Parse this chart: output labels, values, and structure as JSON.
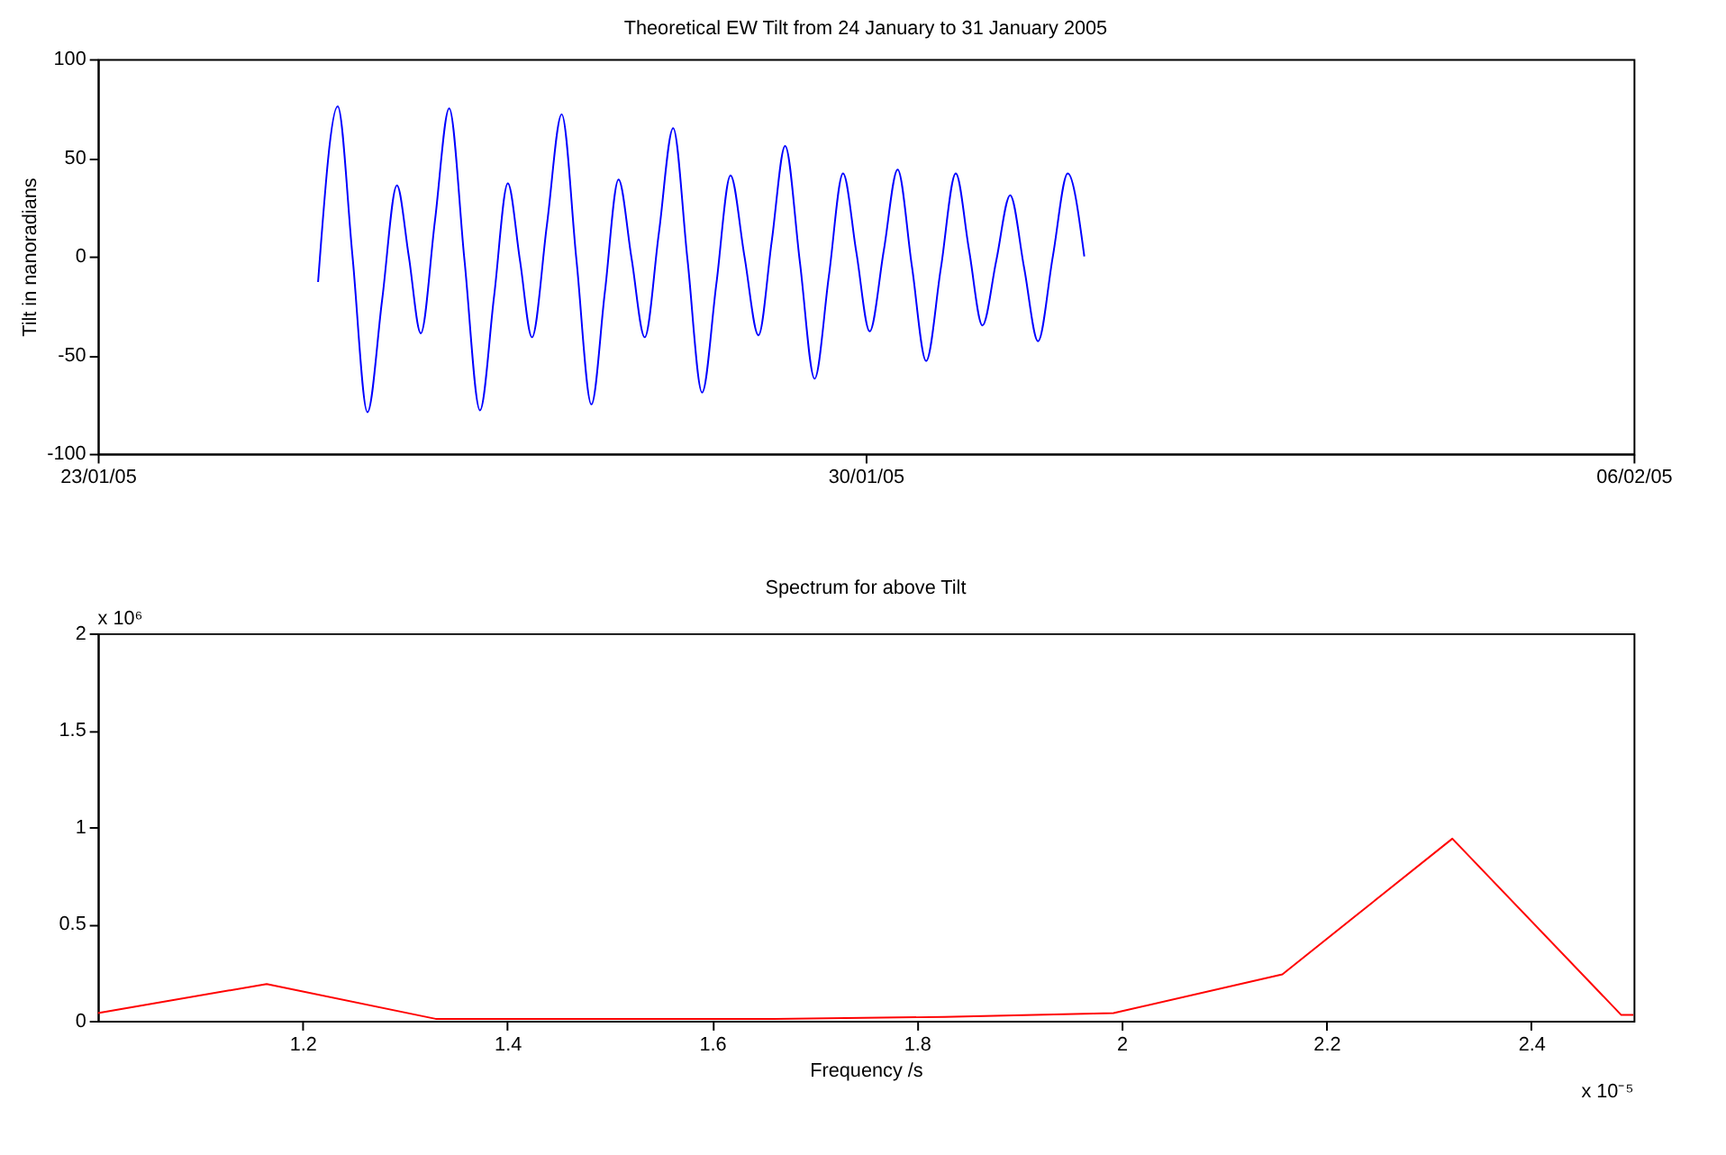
{
  "chart_data": [
    {
      "type": "line",
      "title": "Theoretical EW Tilt from 24 January to 31 January 2005",
      "ylabel": "Tilt in nanoradians",
      "grid": false,
      "x": [
        "2005-01-25T00:12",
        "2005-01-25T04:30",
        "2005-01-25T07:44",
        "2005-01-25T11:00",
        "2005-01-25T14:13",
        "2005-01-25T17:27",
        "2005-01-25T20:03",
        "2005-01-25T22:40",
        "2005-01-26T01:46",
        "2005-01-26T04:53",
        "2005-01-26T08:14",
        "2005-01-26T11:37",
        "2005-01-26T14:43",
        "2005-01-26T17:43",
        "2005-01-26T20:22",
        "2005-01-26T23:00",
        "2005-01-27T02:16",
        "2005-01-27T05:30",
        "2005-01-27T08:44",
        "2005-01-27T12:00",
        "2005-01-27T14:57",
        "2005-01-27T17:56",
        "2005-01-27T20:47",
        "2005-01-27T23:40",
        "2005-01-28T02:46",
        "2005-01-28T05:53",
        "2005-01-28T09:02",
        "2005-01-28T12:13",
        "2005-01-28T15:20",
        "2005-01-28T18:26",
        "2005-01-28T21:29",
        "2005-01-29T00:33",
        "2005-01-29T03:28",
        "2005-01-29T06:23",
        "2005-01-29T09:37",
        "2005-01-29T12:50",
        "2005-01-29T15:57",
        "2005-01-29T19:03",
        "2005-01-29T21:58",
        "2005-01-30T00:53",
        "2005-01-30T03:58",
        "2005-01-30T07:00",
        "2005-01-30T10:07",
        "2005-01-30T13:14",
        "2005-01-30T16:27",
        "2005-01-30T19:43",
        "2005-01-30T22:38",
        "2005-01-31T01:33",
        "2005-01-31T04:35",
        "2005-01-31T07:37",
        "2005-01-31T10:41",
        "2005-01-31T13:43",
        "2005-01-31T16:57",
        "2005-01-31T20:13",
        "2005-01-31T23:50"
      ],
      "series": [
        {
          "color": "#0000ff",
          "values": [
            -13,
            76,
            0,
            -79,
            -22,
            36,
            0,
            -39,
            18,
            75,
            -2,
            -78,
            -20,
            37,
            -2,
            -41,
            16,
            72,
            -2,
            -75,
            -18,
            39,
            -1,
            -41,
            12,
            65,
            -2,
            -69,
            -14,
            41,
            0,
            -40,
            8,
            56,
            -3,
            -62,
            -10,
            42,
            2,
            -38,
            3,
            44,
            -5,
            -53,
            -6,
            42,
            3,
            -35,
            -2,
            31,
            -6,
            -43,
            0,
            42,
            0
          ]
        }
      ],
      "xlim": [
        "2005-01-23",
        "2005-02-06"
      ],
      "xticks": [
        {
          "value": "2005-01-23",
          "label": "23/01/05"
        },
        {
          "value": "2005-01-30",
          "label": "30/01/05"
        },
        {
          "value": "2005-02-06",
          "label": "06/02/05"
        }
      ],
      "ylim": [
        -100,
        100
      ],
      "yticks": [
        -100,
        -50,
        0,
        50,
        100
      ]
    },
    {
      "type": "line",
      "title": "Spectrum for above Tilt",
      "xlabel": "Frequency /s",
      "grid": false,
      "x": [
        1.0,
        1.165,
        1.33,
        1.496,
        1.661,
        1.827,
        1.992,
        2.157,
        2.323,
        2.488,
        2.5
      ],
      "series": [
        {
          "color": "#ff0000",
          "values": [
            0.04,
            0.19,
            0.01,
            0.01,
            0.01,
            0.02,
            0.04,
            0.24,
            0.94,
            0.03,
            0.03
          ]
        }
      ],
      "xlim": [
        1.0,
        2.5
      ],
      "xticks": [
        1.2,
        1.4,
        1.6,
        1.8,
        2,
        2.2,
        2.4
      ],
      "ylim": [
        0,
        2
      ],
      "yticks": [
        0,
        0.5,
        1,
        1.5,
        2
      ],
      "annotations": [
        "x 10⁶",
        "x 10⁻⁵"
      ]
    }
  ]
}
